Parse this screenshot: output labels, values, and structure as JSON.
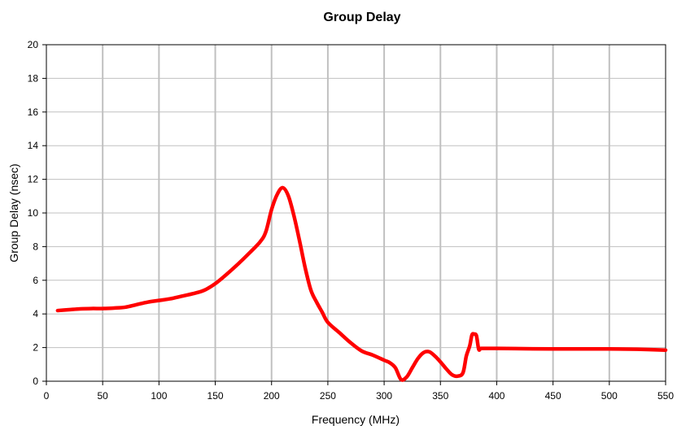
{
  "chart_data": {
    "type": "line",
    "title": "Group Delay",
    "xlabel": "Frequency (MHz)",
    "ylabel": "Group Delay (nsec)",
    "xlim": [
      0,
      550
    ],
    "ylim": [
      0,
      20
    ],
    "xticks": [
      0,
      50,
      100,
      150,
      200,
      250,
      300,
      350,
      400,
      450,
      500,
      550
    ],
    "yticks": [
      0,
      2,
      4,
      6,
      8,
      10,
      12,
      14,
      16,
      18,
      20
    ],
    "grid": {
      "vertical": true,
      "horizontal": true
    },
    "legend": "none",
    "colors": {
      "series": "#ff0000",
      "vgrid": "#c0c0c0",
      "hgrid": "#c0c0c0",
      "axis": "#000000"
    },
    "series": [
      {
        "color": "#ff0000",
        "x": [
          10,
          20,
          30,
          40,
          50,
          60,
          70,
          80,
          90,
          100,
          110,
          120,
          130,
          140,
          150,
          160,
          170,
          180,
          190,
          195,
          200,
          205,
          210,
          215,
          220,
          225,
          230,
          235,
          240,
          245,
          250,
          260,
          270,
          280,
          290,
          300,
          305,
          310,
          315,
          320,
          325,
          330,
          335,
          340,
          345,
          350,
          355,
          360,
          365,
          370,
          373,
          376,
          378,
          380,
          382,
          384,
          386,
          390,
          400,
          450,
          500,
          525,
          550
        ],
        "y": [
          4.2,
          4.25,
          4.3,
          4.32,
          4.32,
          4.35,
          4.4,
          4.55,
          4.7,
          4.8,
          4.9,
          5.05,
          5.2,
          5.4,
          5.8,
          6.35,
          6.95,
          7.6,
          8.3,
          8.9,
          10.2,
          11.1,
          11.5,
          11.0,
          9.8,
          8.3,
          6.7,
          5.4,
          4.7,
          4.1,
          3.5,
          2.9,
          2.3,
          1.8,
          1.55,
          1.25,
          1.1,
          0.8,
          0.1,
          0.25,
          0.8,
          1.35,
          1.7,
          1.75,
          1.5,
          1.15,
          0.75,
          0.4,
          0.3,
          0.5,
          1.5,
          2.1,
          2.75,
          2.8,
          2.7,
          1.9,
          1.95,
          1.95,
          1.95,
          1.92,
          1.92,
          1.9,
          1.85
        ]
      }
    ]
  }
}
